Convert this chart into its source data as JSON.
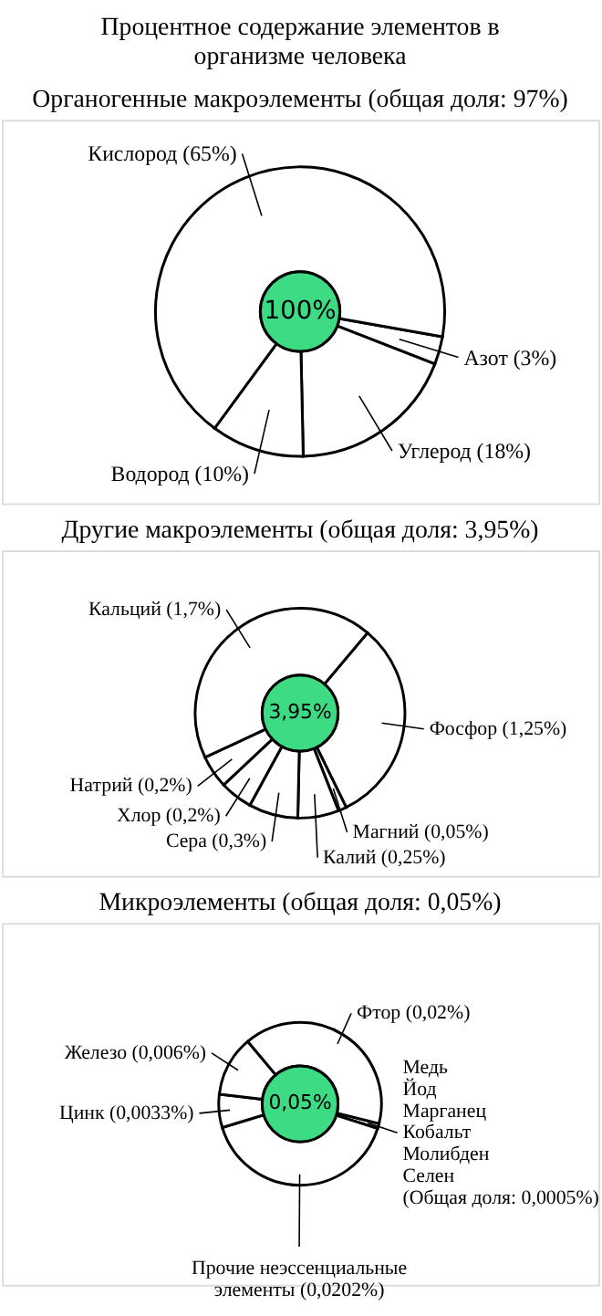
{
  "chart_data": [
    {
      "type": "donut",
      "title": "Процентное содержание элементов в организме человека",
      "subtitle": "Органогенные макроэлементы (общая доля: 97%)",
      "categories": [
        "Азот",
        "Углерод",
        "Водород",
        "Кислород"
      ],
      "values": [
        3,
        18,
        10,
        65
      ],
      "value_labels": [
        "(3%)",
        "(18%)",
        "(10%)",
        "(65%)"
      ],
      "colors": [
        "#ffffff",
        "#ffffff",
        "#ffffff",
        "#ffffff"
      ],
      "annotations": [
        "100%"
      ]
    },
    {
      "type": "donut",
      "title": "Другие макроэлементы (общая доля: 3,95%)",
      "categories": [
        "Фосфор",
        "Магний",
        "Калий",
        "Сера",
        "Хлор",
        "Натрий",
        "Кальций"
      ],
      "values": [
        1.25,
        0.05,
        0.25,
        0.3,
        0.2,
        0.2,
        1.7
      ],
      "value_labels": [
        "(1,25%)",
        "(0,05%)",
        "(0,25%)",
        "(0,3%)",
        "(0,2%)",
        "(0,2%)",
        "(1,7%)"
      ],
      "colors": [
        "#ffffff",
        "#ffffff",
        "#ffffff",
        "#ffffff",
        "#ffffff",
        "#ffffff",
        "#ffffff"
      ],
      "annotations": [
        "3,95%"
      ]
    },
    {
      "type": "donut",
      "title": "Микроэлементы (общая доля: 0,05%)",
      "categories": [
        "Медь\nЙод\nМарганец\nКобальт\nМолибден\nСелен",
        "Прочие неэссенциальные\nэлементы",
        "Цинк",
        "Железо",
        "Фтор"
      ],
      "values": [
        0.0005,
        0.0202,
        0.0033,
        0.006,
        0.02
      ],
      "value_labels": [
        "(Общая доля: 0,0005%)",
        "(0,0202%)",
        "(0,0033%)",
        "(0,006%)",
        "(0,02%)"
      ],
      "colors": [
        "#ffffff",
        "#ffffff",
        "#ffffff",
        "#ffffff",
        "#ffffff"
      ],
      "annotations": [
        "0,05%"
      ]
    }
  ]
}
